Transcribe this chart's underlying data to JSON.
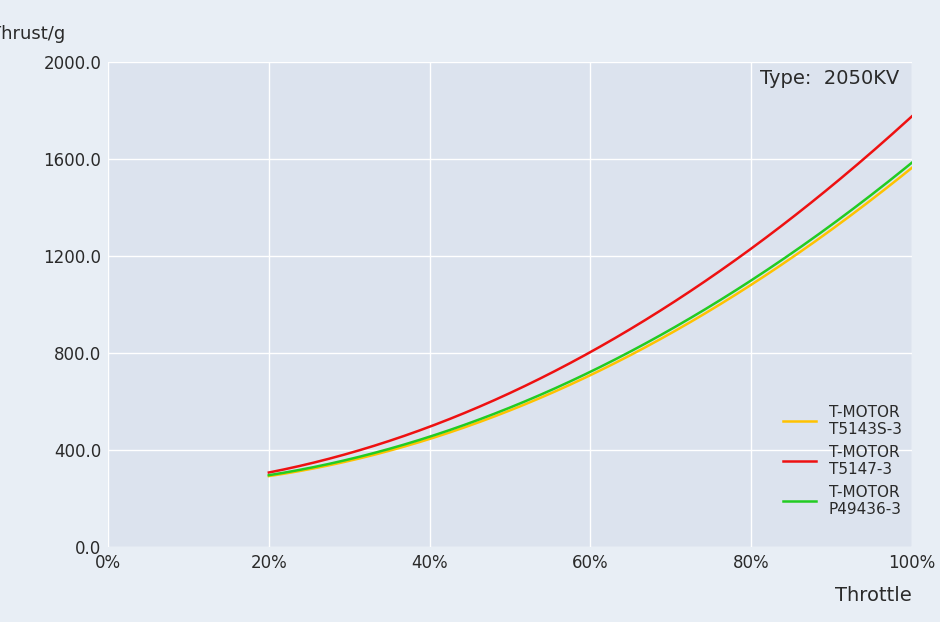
{
  "title_type": "Type:  2050KV",
  "ylabel": "Thrust/g",
  "xlabel": "Throttle",
  "bg_color": "#e8eef5",
  "plot_bg_color": "#dce3ee",
  "grid_color": "#ffffff",
  "ylim": [
    0,
    2000
  ],
  "xlim": [
    0,
    100
  ],
  "yticks": [
    0.0,
    400.0,
    800.0,
    1200.0,
    1600.0,
    2000.0
  ],
  "xticks": [
    0,
    20,
    40,
    60,
    80,
    100
  ],
  "series": [
    {
      "label": "T-MOTOR\nT5143S-3",
      "color": "#FFC200",
      "linewidth": 1.8,
      "x": [
        20,
        30,
        40,
        50,
        60,
        70,
        80,
        90,
        100
      ],
      "y": [
        270,
        370,
        470,
        580,
        700,
        870,
        1060,
        1310,
        1580
      ]
    },
    {
      "label": "T-MOTOR\nT5147-3",
      "color": "#EE1111",
      "linewidth": 1.8,
      "x": [
        20,
        30,
        40,
        50,
        60,
        70,
        80,
        90,
        100
      ],
      "y": [
        295,
        400,
        510,
        640,
        790,
        1000,
        1230,
        1490,
        1780
      ]
    },
    {
      "label": "T-MOTOR\nP49436-3",
      "color": "#22CC22",
      "linewidth": 1.8,
      "x": [
        20,
        30,
        40,
        50,
        60,
        70,
        80,
        90,
        100
      ],
      "y": [
        275,
        375,
        480,
        590,
        715,
        885,
        1080,
        1330,
        1600
      ]
    }
  ],
  "title_fontsize": 14,
  "axis_label_fontsize": 13,
  "tick_fontsize": 12,
  "legend_fontsize": 11
}
